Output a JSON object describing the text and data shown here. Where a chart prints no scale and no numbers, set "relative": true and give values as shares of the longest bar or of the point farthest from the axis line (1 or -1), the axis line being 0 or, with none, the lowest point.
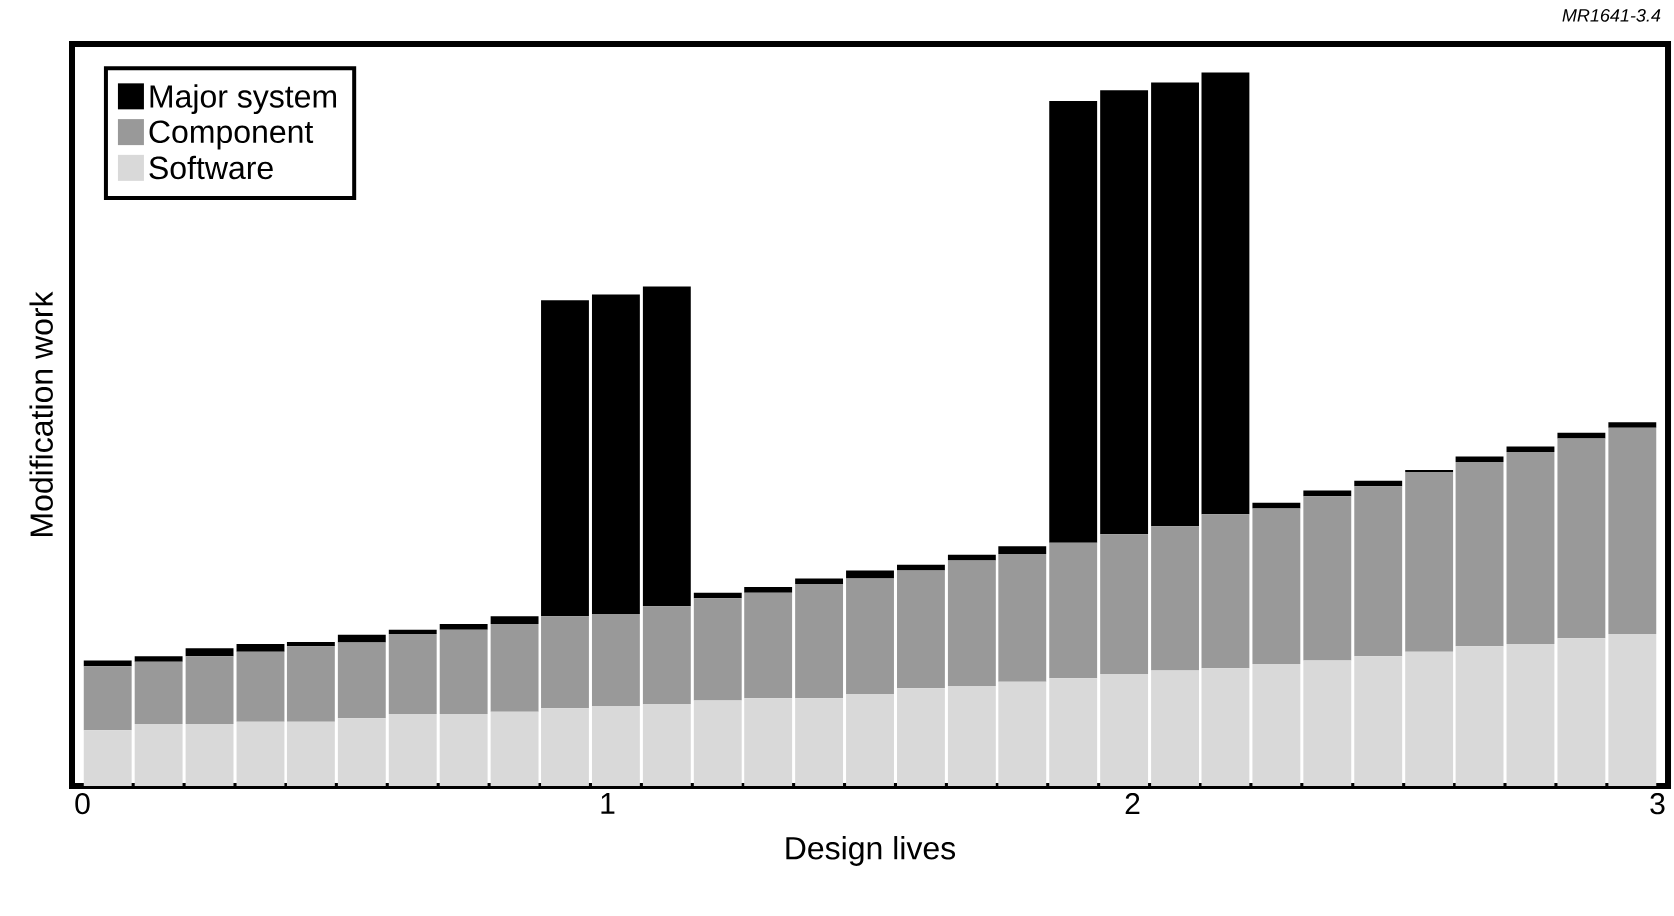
{
  "chart_data": {
    "type": "bar",
    "stacked": true,
    "relative": true,
    "xlabel": "Design lives",
    "ylabel": "Modification work",
    "xlim": [
      -0.02,
      3.02
    ],
    "xticks": [
      {
        "value": 0,
        "label": "0"
      },
      {
        "value": 1,
        "label": "1"
      },
      {
        "value": 2,
        "label": "2"
      },
      {
        "value": 3,
        "label": "3"
      }
    ],
    "grid": false,
    "legend": "top left",
    "annotations": [
      "*MR1641-3.4*"
    ],
    "x": [
      0.048,
      0.145,
      0.242,
      0.339,
      0.435,
      0.532,
      0.629,
      0.726,
      0.823,
      0.919,
      1.016,
      1.113,
      1.21,
      1.306,
      1.403,
      1.5,
      1.597,
      1.694,
      1.79,
      1.887,
      1.984,
      2.081,
      2.177,
      2.274,
      2.371,
      2.468,
      2.565,
      2.661,
      2.758,
      2.855,
      2.952
    ],
    "series": [
      {
        "name": "Software",
        "color": "#d9d9d9",
        "values": [
          0.078,
          0.087,
          0.087,
          0.09,
          0.09,
          0.095,
          0.101,
          0.101,
          0.104,
          0.109,
          0.112,
          0.115,
          0.12,
          0.123,
          0.123,
          0.129,
          0.137,
          0.14,
          0.146,
          0.151,
          0.157,
          0.162,
          0.165,
          0.171,
          0.176,
          0.182,
          0.188,
          0.196,
          0.199,
          0.207,
          0.213
        ]
      },
      {
        "name": "Component",
        "color": "#999999",
        "values": [
          0.09,
          0.087,
          0.095,
          0.098,
          0.106,
          0.106,
          0.112,
          0.118,
          0.123,
          0.129,
          0.129,
          0.137,
          0.143,
          0.148,
          0.16,
          0.162,
          0.165,
          0.176,
          0.179,
          0.19,
          0.196,
          0.202,
          0.216,
          0.218,
          0.23,
          0.238,
          0.252,
          0.258,
          0.269,
          0.28,
          0.289
        ]
      },
      {
        "name": "Major system",
        "color": "#000000",
        "values": [
          0.008,
          0.008,
          0.011,
          0.011,
          0.006,
          0.011,
          0.006,
          0.008,
          0.011,
          0.443,
          0.448,
          0.448,
          0.008,
          0.008,
          0.008,
          0.011,
          0.008,
          0.008,
          0.011,
          0.619,
          0.622,
          0.622,
          0.619,
          0.008,
          0.008,
          0.008,
          0.003,
          0.008,
          0.008,
          0.008,
          0.008
        ]
      }
    ]
  }
}
